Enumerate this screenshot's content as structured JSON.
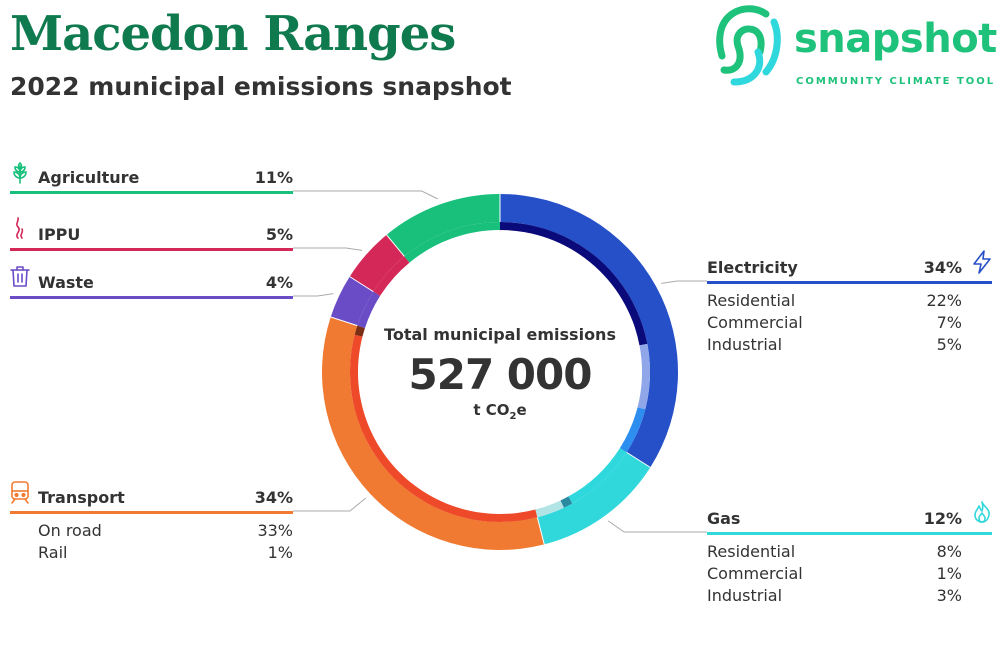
{
  "title": "Macedon Ranges",
  "subtitle": "2022 municipal emissions snapshot",
  "logo": {
    "word": "snapshot",
    "tagline": "COMMUNITY CLIMATE TOOL",
    "color": "#1ec27a"
  },
  "center": {
    "label": "Total municipal emissions",
    "value": "527 000",
    "unit_main": "t CO",
    "unit_sub": "2",
    "unit_tail": "e"
  },
  "chart_data": {
    "type": "pie",
    "total": 527000,
    "unit": "t CO2e",
    "sectors": [
      {
        "name": "Electricity",
        "value": "34%",
        "share": 34,
        "color": "#2650c8",
        "icon": "lightning-icon",
        "subs": [
          {
            "name": "Residential",
            "value": "22%",
            "share": 22,
            "color": "#0a0a7a"
          },
          {
            "name": "Commercial",
            "value": "7%",
            "share": 7,
            "color": "#8fa6e8"
          },
          {
            "name": "Industrial",
            "value": "5%",
            "share": 5,
            "color": "#2d8ef0"
          }
        ]
      },
      {
        "name": "Gas",
        "value": "12%",
        "share": 12,
        "color": "#30d8dc",
        "icon": "flame-icon",
        "subs": [
          {
            "name": "Residential",
            "value": "8%",
            "share": 8,
            "color": "#2fd8dc"
          },
          {
            "name": "Commercial",
            "value": "1%",
            "share": 1,
            "color": "#2b8aa0"
          },
          {
            "name": "Industrial",
            "value": "3%",
            "share": 3,
            "color": "#b2e4e6"
          }
        ]
      },
      {
        "name": "Transport",
        "value": "34%",
        "share": 34,
        "color": "#f07a32",
        "icon": "train-icon",
        "subs": [
          {
            "name": "On road",
            "value": "33%",
            "share": 33,
            "color": "#ee4a2a"
          },
          {
            "name": "Rail",
            "value": "1%",
            "share": 1,
            "color": "#7a2e14"
          }
        ]
      },
      {
        "name": "Waste",
        "value": "4%",
        "share": 4,
        "color": "#6a4cc6",
        "icon": "bin-icon",
        "subs": []
      },
      {
        "name": "IPPU",
        "value": "5%",
        "share": 5,
        "color": "#d42858",
        "icon": "smoke-icon",
        "subs": []
      },
      {
        "name": "Agriculture",
        "value": "11%",
        "share": 11,
        "color": "#18c07c",
        "icon": "wheat-icon",
        "subs": []
      }
    ]
  }
}
